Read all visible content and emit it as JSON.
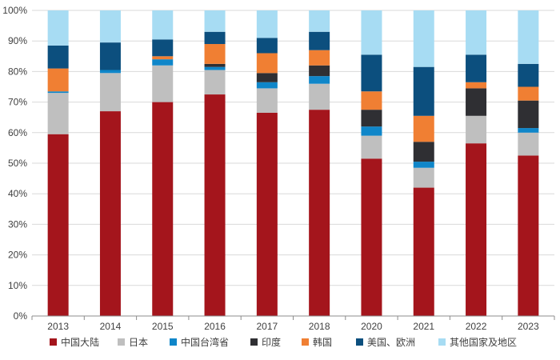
{
  "chart_data": {
    "type": "bar",
    "stacked": true,
    "title": "",
    "xlabel": "",
    "ylabel": "",
    "ylim": [
      0,
      100
    ],
    "yticks": [
      "0%",
      "10%",
      "20%",
      "30%",
      "40%",
      "50%",
      "60%",
      "70%",
      "80%",
      "90%",
      "100%"
    ],
    "categories": [
      "2013",
      "2014",
      "2015",
      "2016",
      "2017",
      "2018",
      "2020",
      "2021",
      "2022",
      "2023"
    ],
    "legend_position": "bottom",
    "series": [
      {
        "name": "中国大陆",
        "color": "#a4151c",
        "values": [
          59.5,
          67,
          70,
          72.5,
          66.5,
          67.5,
          51.5,
          42,
          56.5,
          52.5
        ]
      },
      {
        "name": "日本",
        "color": "#bfbfbf",
        "values": [
          13.5,
          12.5,
          12,
          8,
          8,
          8.5,
          7.5,
          6.5,
          9,
          7.5
        ]
      },
      {
        "name": "中国台湾省",
        "color": "#0f86c9",
        "values": [
          0.5,
          1,
          2,
          1,
          2,
          2.5,
          3,
          2,
          0,
          1.5
        ]
      },
      {
        "name": "印度",
        "color": "#2f2f33",
        "values": [
          0,
          0,
          0,
          1,
          3,
          3.5,
          5.5,
          6.5,
          9,
          9
        ]
      },
      {
        "name": "韩国",
        "color": "#f07f33",
        "values": [
          7.5,
          0,
          1,
          6.5,
          6.5,
          5,
          6,
          8.5,
          2,
          4.5
        ]
      },
      {
        "name": "美国、欧洲",
        "color": "#0c4f7e",
        "values": [
          7.5,
          9,
          5.5,
          4,
          5,
          6,
          12,
          16,
          9,
          7.5
        ]
      },
      {
        "name": "其他国家及地区",
        "color": "#a7dcf3",
        "values": [
          11.5,
          10.5,
          9.5,
          7,
          9,
          7,
          14.5,
          18.5,
          14.5,
          17.5
        ]
      }
    ]
  }
}
